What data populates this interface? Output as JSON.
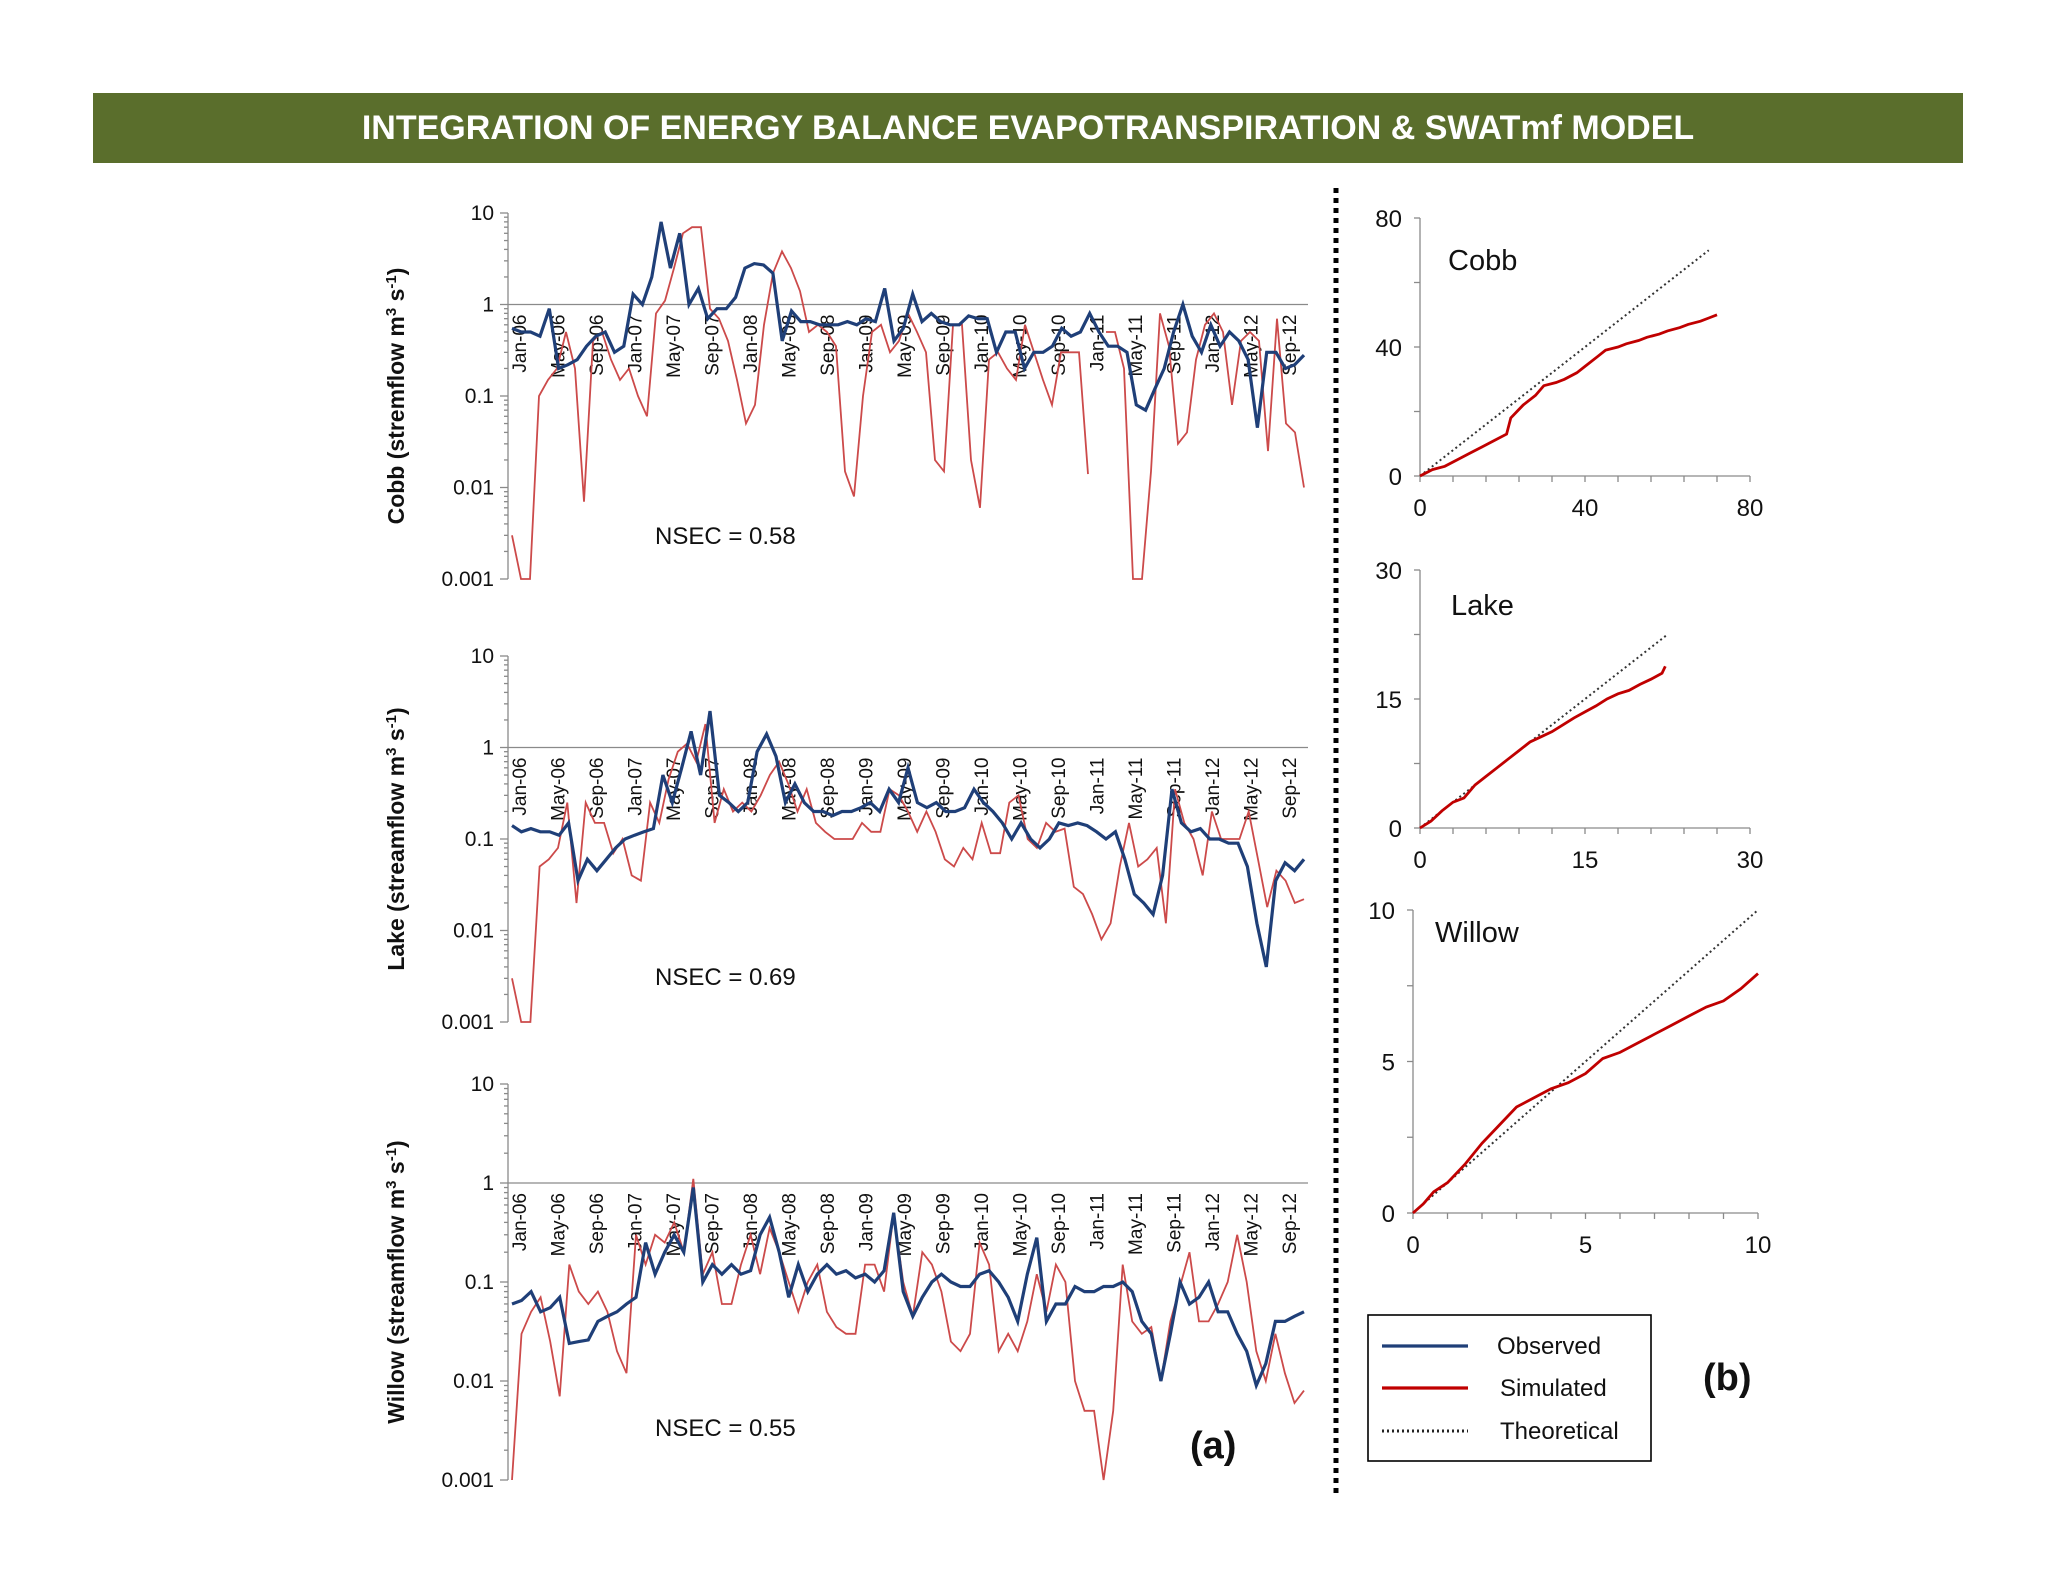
{
  "banner": {
    "title": "INTEGRATION OF ENERGY BALANCE EVAPOTRANSPIRATION & SWATmf MODEL"
  },
  "panel_labels": {
    "a": "(a)",
    "b": "(b)"
  },
  "legend": {
    "observed": "Observed",
    "simulated": "Simulated",
    "theoretical": "Theoretical"
  },
  "colors": {
    "observed": "#1f3f78",
    "simulated": "#c00000",
    "banner": "#5a6e2c"
  },
  "chart_data": [
    {
      "id": "cobb-ts",
      "type": "line",
      "ylabel": "Cobb (stremflow  m³ s⁻¹)",
      "ylabel_parts": {
        "pre": "Cobb (stremflow  m",
        "sup1": "3",
        "mid": " s",
        "sup2": "-1",
        "post": ")"
      },
      "yscale": "log",
      "ylim": [
        0.001,
        10
      ],
      "yticks": [
        "10",
        "1",
        "0.1",
        "0.01",
        "0.001"
      ],
      "xticks": [
        "Jan-06",
        "May-06",
        "Sep-06",
        "Jan-07",
        "May-07",
        "Sep-07",
        "Jan-08",
        "May-08",
        "Sep-08",
        "Jan-09",
        "May-09",
        "Sep-09",
        "Jan-10",
        "May-10",
        "Sep-10",
        "Jan-11",
        "May-11",
        "Sep-11",
        "Jan-12",
        "May-12",
        "Sep-12"
      ],
      "annotation": "NSEC = 0.58",
      "series": [
        {
          "name": "Observed",
          "values": [
            0.55,
            0.5,
            0.5,
            0.45,
            0.9,
            0.2,
            0.22,
            0.25,
            0.35,
            0.45,
            0.5,
            0.3,
            0.35,
            1.3,
            1.0,
            2,
            8,
            2.5,
            6,
            1.0,
            1.5,
            0.7,
            0.9,
            0.9,
            1.2,
            2.5,
            2.8,
            2.7,
            2.2,
            0.4,
            0.85,
            0.65,
            0.65,
            0.6,
            0.6,
            0.6,
            0.65,
            0.6,
            0.7,
            0.65,
            1.5,
            0.4,
            0.55,
            1.3,
            0.65,
            0.8,
            0.65,
            0.6,
            0.6,
            0.75,
            0.7,
            0.7,
            0.3,
            0.5,
            0.5,
            0.2,
            0.3,
            0.3,
            0.35,
            0.55,
            0.45,
            0.5,
            0.8,
            0.5,
            0.35,
            0.35,
            0.3,
            0.08,
            0.07,
            0.12,
            0.2,
            0.5,
            1.0,
            0.45,
            0.3,
            0.6,
            0.35,
            0.5,
            0.4,
            0.25,
            0.045,
            0.3,
            0.3,
            0.2,
            0.22,
            0.28
          ]
        },
        {
          "name": "Simulated",
          "values": [
            0.003,
            0.001,
            0.001,
            0.1,
            0.15,
            0.2,
            0.5,
            0.2,
            0.007,
            0.4,
            0.5,
            0.25,
            0.15,
            0.2,
            0.1,
            0.06,
            0.8,
            1.1,
            2.5,
            6,
            7,
            7,
            0.9,
            0.7,
            0.4,
            0.15,
            0.05,
            0.08,
            0.6,
            2.2,
            3.8,
            2.5,
            1.4,
            0.5,
            0.6,
            0.5,
            0.35,
            0.015,
            0.008,
            0.1,
            0.5,
            0.6,
            0.3,
            0.4,
            0.8,
            0.5,
            0.3,
            0.02,
            0.015,
            0.6,
            0.6,
            0.02,
            0.006,
            0.25,
            0.3,
            0.2,
            0.15,
            0.6,
            0.3,
            0.15,
            0.08,
            0.3,
            0.3,
            0.3,
            0.014,
            null,
            0.5,
            0.5,
            0.2,
            0.001,
            0.001,
            0.015,
            0.8,
            0.35,
            0.03,
            0.04,
            0.25,
            0.6,
            0.8,
            0.5,
            0.08,
            0.4,
            0.5,
            0.4,
            0.025,
            0.7,
            0.05,
            0.04,
            0.01
          ]
        }
      ]
    },
    {
      "id": "lake-ts",
      "type": "line",
      "ylabel": "Lake (streamflow  m³ s⁻¹)",
      "ylabel_parts": {
        "pre": "Lake (streamflow  m",
        "sup1": "3",
        "mid": " s",
        "sup2": "-1",
        "post": ")"
      },
      "yscale": "log",
      "ylim": [
        0.001,
        10
      ],
      "yticks": [
        "10",
        "1",
        "0.1",
        "0.01",
        "0.001"
      ],
      "xticks": [
        "Jan-06",
        "May-06",
        "Sep-06",
        "Jan-07",
        "May-07",
        "Sep-07",
        "Jan-08",
        "May-08",
        "Sep-08",
        "Jan-09",
        "May-09",
        "Sep-09",
        "Jan-10",
        "May-10",
        "Sep-10",
        "Jan-11",
        "May-11",
        "Sep-11",
        "Jan-12",
        "May-12",
        "Sep-12"
      ],
      "annotation": "NSEC = 0.69",
      "series": [
        {
          "name": "Observed",
          "values": [
            0.14,
            0.12,
            0.13,
            0.12,
            0.12,
            0.11,
            0.15,
            0.035,
            0.06,
            0.045,
            0.06,
            0.08,
            0.1,
            0.11,
            0.12,
            0.13,
            0.5,
            0.25,
            0.6,
            1.5,
            0.5,
            2.5,
            0.3,
            0.25,
            0.2,
            0.25,
            0.9,
            1.4,
            0.8,
            0.25,
            0.4,
            0.25,
            0.2,
            0.2,
            0.18,
            0.2,
            0.2,
            0.22,
            0.25,
            0.2,
            0.35,
            0.25,
            0.6,
            0.25,
            0.22,
            0.25,
            0.2,
            0.2,
            0.22,
            0.35,
            0.25,
            0.2,
            0.15,
            0.1,
            0.15,
            0.1,
            0.08,
            0.1,
            0.15,
            0.14,
            0.15,
            0.14,
            0.12,
            0.1,
            0.12,
            0.06,
            0.025,
            0.02,
            0.015,
            0.04,
            0.35,
            0.15,
            0.12,
            0.13,
            0.1,
            0.1,
            0.09,
            0.09,
            0.05,
            0.012,
            0.004,
            0.035,
            0.055,
            0.045,
            0.06
          ]
        },
        {
          "name": "Simulated",
          "values": [
            0.003,
            0.001,
            0.001,
            0.05,
            0.06,
            0.08,
            0.25,
            0.02,
            0.25,
            0.15,
            0.15,
            0.07,
            0.1,
            0.04,
            0.035,
            0.25,
            0.15,
            0.45,
            0.9,
            1.1,
            0.7,
            1.8,
            0.15,
            0.35,
            0.2,
            0.25,
            0.2,
            0.3,
            0.5,
            0.7,
            0.4,
            0.2,
            0.35,
            0.15,
            0.12,
            0.1,
            0.1,
            0.1,
            0.15,
            0.12,
            0.12,
            0.35,
            0.3,
            0.2,
            0.12,
            0.2,
            0.12,
            0.06,
            0.05,
            0.08,
            0.06,
            0.15,
            0.07,
            0.07,
            0.25,
            0.3,
            0.1,
            0.08,
            0.15,
            0.12,
            0.13,
            0.03,
            0.025,
            0.015,
            0.008,
            0.012,
            0.05,
            0.15,
            0.05,
            0.06,
            0.08,
            0.012,
            0.35,
            0.15,
            0.1,
            0.04,
            0.2,
            0.1,
            0.1,
            0.1,
            0.2,
            0.06,
            0.018,
            0.045,
            0.035,
            0.02,
            0.022
          ]
        }
      ]
    },
    {
      "id": "willow-ts",
      "type": "line",
      "ylabel": "Willow (streamflow  m³ s⁻¹)",
      "ylabel_parts": {
        "pre": "Willow (streamflow  m",
        "sup1": "3",
        "mid": " s",
        "sup2": "-1",
        "post": ")"
      },
      "yscale": "log",
      "ylim": [
        0.001,
        10
      ],
      "yticks": [
        "10",
        "1",
        "0.1",
        "0.01",
        "0.001"
      ],
      "xticks": [
        "Jan-06",
        "May-06",
        "Sep-06",
        "Jan-07",
        "May-07",
        "Sep-07",
        "Jan-08",
        "May-08",
        "Sep-08",
        "Jan-09",
        "May-09",
        "Sep-09",
        "Jan-10",
        "May-10",
        "Sep-10",
        "Jan-11",
        "May-11",
        "Sep-11",
        "Jan-12",
        "May-12",
        "Sep-12"
      ],
      "annotation": "NSEC = 0.55",
      "series": [
        {
          "name": "Observed",
          "values": [
            0.06,
            0.065,
            0.08,
            0.05,
            0.055,
            0.07,
            0.024,
            0.025,
            0.026,
            0.04,
            0.045,
            0.05,
            0.06,
            0.07,
            0.25,
            0.12,
            0.2,
            0.3,
            0.2,
            0.9,
            0.1,
            0.15,
            0.12,
            0.15,
            0.12,
            0.13,
            0.3,
            0.45,
            0.2,
            0.07,
            0.15,
            0.08,
            0.12,
            0.15,
            0.12,
            0.13,
            0.11,
            0.12,
            0.1,
            0.13,
            0.5,
            0.08,
            0.045,
            0.07,
            0.1,
            0.12,
            0.1,
            0.09,
            0.09,
            0.12,
            0.13,
            0.1,
            0.07,
            0.04,
            0.12,
            0.28,
            0.04,
            0.06,
            0.06,
            0.09,
            0.08,
            0.08,
            0.09,
            0.09,
            0.1,
            0.08,
            0.04,
            0.03,
            0.01,
            0.03,
            0.1,
            0.06,
            0.07,
            0.1,
            0.05,
            0.05,
            0.03,
            0.02,
            0.009,
            0.015,
            0.04,
            0.04,
            0.045,
            0.05
          ]
        },
        {
          "name": "Simulated",
          "values": [
            0.001,
            0.03,
            0.05,
            0.07,
            0.025,
            0.007,
            0.15,
            0.08,
            0.06,
            0.08,
            0.05,
            0.02,
            0.012,
            0.3,
            0.15,
            0.3,
            0.25,
            0.4,
            0.2,
            1.1,
            0.12,
            0.2,
            0.06,
            0.06,
            0.15,
            0.3,
            0.12,
            0.35,
            0.2,
            0.1,
            0.05,
            0.1,
            0.15,
            0.05,
            0.035,
            0.03,
            0.03,
            0.15,
            0.15,
            0.08,
            0.5,
            0.1,
            0.045,
            0.2,
            0.15,
            0.08,
            0.025,
            0.02,
            0.03,
            0.25,
            0.15,
            0.02,
            0.03,
            0.02,
            0.04,
            0.12,
            0.05,
            0.15,
            0.1,
            0.01,
            0.005,
            0.005,
            0.001,
            0.005,
            0.15,
            0.04,
            0.03,
            0.035,
            0.01,
            0.04,
            0.09,
            0.2,
            0.04,
            0.04,
            0.06,
            0.1,
            0.3,
            0.1,
            0.02,
            0.01,
            0.03,
            0.012,
            0.006,
            0.008
          ]
        }
      ]
    },
    {
      "id": "cobb-cum",
      "type": "line",
      "title": "Cobb",
      "xlim": [
        0,
        80
      ],
      "ylim": [
        0,
        80
      ],
      "xticks": [
        "0",
        "40",
        "80"
      ],
      "yticks": [
        "80",
        "40",
        "0"
      ],
      "series": [
        {
          "name": "Simulated",
          "x": [
            0,
            3,
            6,
            9,
            12,
            15,
            18,
            21,
            22,
            25,
            28,
            30,
            33,
            35,
            38,
            40,
            43,
            45,
            48,
            50,
            53,
            55,
            58,
            60,
            63,
            65,
            68,
            70,
            72
          ],
          "y": [
            0,
            2,
            3,
            5,
            7,
            9,
            11,
            13,
            18,
            22,
            25,
            28,
            29,
            30,
            32,
            34,
            37,
            39,
            40,
            41,
            42,
            43,
            44,
            45,
            46,
            47,
            48,
            49,
            50
          ]
        },
        {
          "name": "Theoretical",
          "x": [
            0,
            70
          ],
          "y": [
            0,
            70
          ]
        }
      ]
    },
    {
      "id": "lake-cum",
      "type": "line",
      "title": "Lake",
      "xlim": [
        0,
        30
      ],
      "ylim": [
        0,
        30
      ],
      "xticks": [
        "0",
        "15",
        "30"
      ],
      "yticks": [
        "30",
        "15",
        "0"
      ],
      "series": [
        {
          "name": "Simulated",
          "x": [
            0,
            1,
            2,
            3,
            4,
            5,
            6,
            7,
            8,
            9,
            10,
            11,
            12,
            13,
            14,
            15,
            16,
            17,
            18,
            19,
            20,
            21,
            22,
            22.3
          ],
          "y": [
            0,
            0.8,
            2,
            3,
            3.5,
            5,
            6,
            7,
            8,
            9,
            10,
            10.6,
            11.2,
            12,
            12.8,
            13.5,
            14.2,
            15,
            15.6,
            16,
            16.7,
            17.3,
            18,
            18.8
          ]
        },
        {
          "name": "Theoretical",
          "x": [
            0,
            22.5
          ],
          "y": [
            0,
            22.5
          ]
        }
      ]
    },
    {
      "id": "willow-cum",
      "type": "line",
      "title": "Willow",
      "xlim": [
        0,
        10
      ],
      "ylim": [
        0,
        10
      ],
      "xticks": [
        "0",
        "5",
        "10"
      ],
      "yticks": [
        "10",
        "5",
        "0"
      ],
      "series": [
        {
          "name": "Simulated",
          "x": [
            0,
            0.3,
            0.6,
            1,
            1.5,
            2,
            2.5,
            3,
            3.5,
            4,
            4.5,
            5,
            5.5,
            6,
            6.5,
            7,
            7.5,
            8,
            8.5,
            9,
            9.5,
            10
          ],
          "y": [
            0,
            0.3,
            0.7,
            1,
            1.6,
            2.3,
            2.9,
            3.5,
            3.8,
            4.1,
            4.3,
            4.6,
            5.1,
            5.3,
            5.6,
            5.9,
            6.2,
            6.5,
            6.8,
            7.0,
            7.4,
            7.9
          ]
        },
        {
          "name": "Theoretical",
          "x": [
            0,
            10
          ],
          "y": [
            0,
            10
          ]
        }
      ]
    }
  ]
}
